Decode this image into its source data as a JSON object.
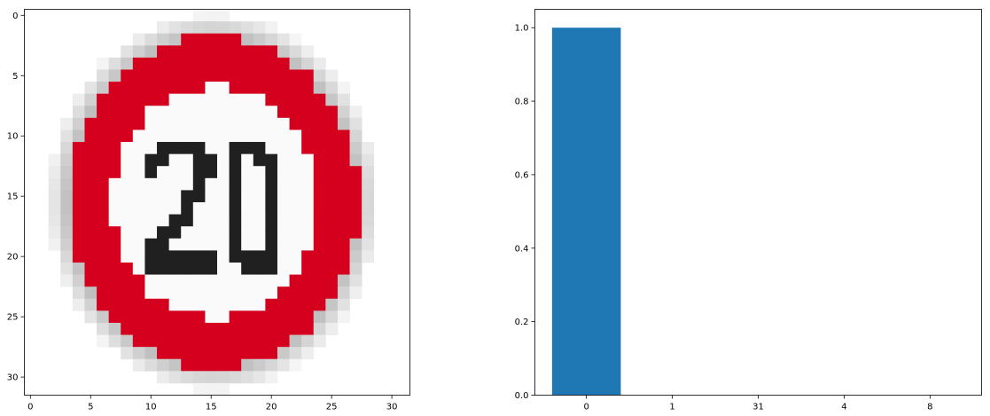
{
  "chart_data": [
    {
      "type": "image",
      "description": "32x32 pixel image of a speed limit sign showing 20",
      "sign_text": "20",
      "image_size": [
        32,
        32
      ],
      "x_ticks": [
        "0",
        "5",
        "10",
        "15",
        "20",
        "25",
        "30"
      ],
      "y_ticks": [
        "0",
        "5",
        "10",
        "15",
        "20",
        "25",
        "30"
      ],
      "xlim": [
        -0.5,
        31.5
      ],
      "ylim": [
        31.5,
        -0.5
      ],
      "colors": {
        "red": "#d4001e",
        "white": "#fafafa",
        "dark": "#202020"
      }
    },
    {
      "type": "bar",
      "categories": [
        "0",
        "1",
        "31",
        "4",
        "8"
      ],
      "values": [
        1.0,
        0.0,
        0.0,
        0.0,
        0.0
      ],
      "ylim": [
        0,
        1.05
      ],
      "y_ticks": [
        "0.0",
        "0.2",
        "0.4",
        "0.6",
        "0.8",
        "1.0"
      ],
      "bar_color": "#1f77b4",
      "title": "",
      "xlabel": "",
      "ylabel": ""
    }
  ]
}
